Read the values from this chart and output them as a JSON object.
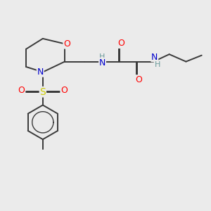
{
  "background_color": "#ebebeb",
  "atom_colors": {
    "O": "#ff0000",
    "N": "#0000cd",
    "S": "#cccc00",
    "C": "#3a3a3a",
    "H": "#6a9a9a"
  },
  "bond_color": "#3a3a3a",
  "bond_lw": 1.4,
  "figsize": [
    3.0,
    3.0
  ],
  "dpi": 100
}
